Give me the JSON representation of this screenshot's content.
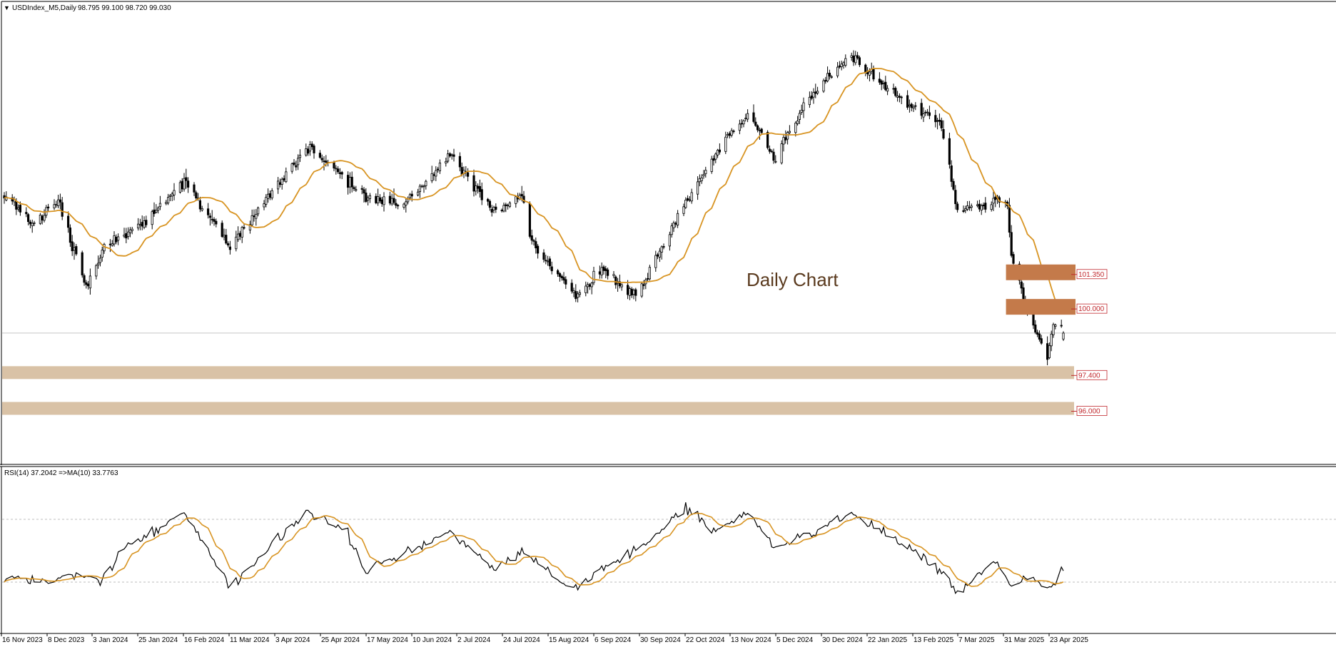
{
  "main_panel": {
    "symbol_label": "USDIndex_M5,Daily",
    "ohlc_label": "98.795 99.100 98.720 99.030",
    "annotation": "Daily Chart",
    "zone_price_labels": [
      "101.350",
      "100.000",
      "97.400",
      "96.000"
    ]
  },
  "rsi_panel": {
    "label": "RSI(14) 37.2042  =>MA(10) 33.7763"
  },
  "colors": {
    "candle": "#000000",
    "moving_average": "#d89422",
    "resistance_zone": "#c47a4a",
    "support_zone": "#d9c2a6",
    "zone_label": "#c0282d",
    "grid_dash": "#bdbdbd"
  },
  "chart_data": [
    {
      "type": "candlestick",
      "timeframe": "Daily",
      "x_axis_ticks": [
        "16 Nov 2023",
        "8 Dec 2023",
        "3 Jan 2024",
        "25 Jan 2024",
        "16 Feb 2024",
        "11 Mar 2024",
        "3 Apr 2024",
        "25 Apr 2024",
        "17 May 2024",
        "10 Jun 2024",
        "2 Jul 2024",
        "24 Jul 2024",
        "15 Aug 2024",
        "6 Sep 2024",
        "30 Sep 2024",
        "22 Oct 2024",
        "13 Nov 2024",
        "5 Dec 2024",
        "30 Dec 2024",
        "22 Jan 2025",
        "13 Feb 2025",
        "7 Mar 2025",
        "31 Mar 2025",
        "23 Apr 2025"
      ],
      "close_keypoints": [
        {
          "date": "2023-11-16",
          "close": 104.4
        },
        {
          "date": "2023-12-01",
          "close": 103.3
        },
        {
          "date": "2023-12-13",
          "close": 104.2
        },
        {
          "date": "2023-12-27",
          "close": 100.8
        },
        {
          "date": "2024-01-05",
          "close": 102.4
        },
        {
          "date": "2024-01-25",
          "close": 103.3
        },
        {
          "date": "2024-02-14",
          "close": 104.9
        },
        {
          "date": "2024-03-08",
          "close": 102.4
        },
        {
          "date": "2024-04-01",
          "close": 104.8
        },
        {
          "date": "2024-04-16",
          "close": 106.3
        },
        {
          "date": "2024-05-15",
          "close": 104.3
        },
        {
          "date": "2024-06-03",
          "close": 104.0
        },
        {
          "date": "2024-06-26",
          "close": 106.1
        },
        {
          "date": "2024-07-17",
          "close": 103.8
        },
        {
          "date": "2024-08-01",
          "close": 104.4
        },
        {
          "date": "2024-08-05",
          "close": 102.7
        },
        {
          "date": "2024-08-27",
          "close": 100.6
        },
        {
          "date": "2024-09-11",
          "close": 101.5
        },
        {
          "date": "2024-09-27",
          "close": 100.4
        },
        {
          "date": "2024-10-22",
          "close": 104.2
        },
        {
          "date": "2024-11-13",
          "close": 106.8
        },
        {
          "date": "2024-11-22",
          "close": 107.6
        },
        {
          "date": "2024-12-06",
          "close": 105.9
        },
        {
          "date": "2024-12-20",
          "close": 108.0
        },
        {
          "date": "2025-01-13",
          "close": 109.9
        },
        {
          "date": "2025-02-03",
          "close": 108.4
        },
        {
          "date": "2025-02-27",
          "close": 107.2
        },
        {
          "date": "2025-03-07",
          "close": 103.8
        },
        {
          "date": "2025-03-27",
          "close": 104.2
        },
        {
          "date": "2025-04-01",
          "close": 104.0
        },
        {
          "date": "2025-04-03",
          "close": 102.0
        },
        {
          "date": "2025-04-11",
          "close": 99.9
        },
        {
          "date": "2025-04-21",
          "close": 98.0
        },
        {
          "date": "2025-04-24",
          "close": 99.4
        },
        {
          "date": "2025-04-29",
          "close": 99.03
        }
      ],
      "last_bar_ohlc": {
        "open": 98.795,
        "high": 99.1,
        "low": 98.72,
        "close": 99.03
      },
      "moving_average": {
        "description": "lagging average of close",
        "color": "#d89422"
      },
      "price_zones": [
        {
          "label": "101.350",
          "level": 101.35,
          "type": "resistance",
          "extent": "recent bars only"
        },
        {
          "label": "100.000",
          "level": 100.0,
          "type": "resistance",
          "extent": "recent bars only"
        },
        {
          "label": "97.400",
          "level": 97.4,
          "type": "support",
          "extent": "full width"
        },
        {
          "label": "96.000",
          "level": 96.0,
          "type": "support",
          "extent": "full width"
        }
      ],
      "horizontal_line": {
        "level": 99.03
      },
      "y_range": [
        94.2,
        111.5
      ],
      "grid": false
    },
    {
      "type": "line",
      "name": "RSI(14)",
      "last_value": 37.2042,
      "ma_name": "MA(10)",
      "ma_last_value": 33.7763,
      "levels": [
        70,
        30
      ],
      "y_range": [
        0,
        100
      ],
      "keypoints": [
        {
          "date": "2023-11-16",
          "rsi": 33
        },
        {
          "date": "2023-12-06",
          "rsi": 30
        },
        {
          "date": "2023-12-18",
          "rsi": 34
        },
        {
          "date": "2024-01-03",
          "rsi": 31
        },
        {
          "date": "2024-01-15",
          "rsi": 52
        },
        {
          "date": "2024-02-14",
          "rsi": 74
        },
        {
          "date": "2024-03-08",
          "rsi": 27
        },
        {
          "date": "2024-04-16",
          "rsi": 76
        },
        {
          "date": "2024-05-06",
          "rsi": 60
        },
        {
          "date": "2024-05-15",
          "rsi": 38
        },
        {
          "date": "2024-06-26",
          "rsi": 62
        },
        {
          "date": "2024-07-17",
          "rsi": 38
        },
        {
          "date": "2024-08-01",
          "rsi": 50
        },
        {
          "date": "2024-08-27",
          "rsi": 25
        },
        {
          "date": "2024-09-15",
          "rsi": 42
        },
        {
          "date": "2024-10-01",
          "rsi": 53
        },
        {
          "date": "2024-10-22",
          "rsi": 77
        },
        {
          "date": "2024-11-05",
          "rsi": 63
        },
        {
          "date": "2024-11-22",
          "rsi": 75
        },
        {
          "date": "2024-12-06",
          "rsi": 52
        },
        {
          "date": "2025-01-13",
          "rsi": 74
        },
        {
          "date": "2025-02-03",
          "rsi": 58
        },
        {
          "date": "2025-02-20",
          "rsi": 44
        },
        {
          "date": "2025-03-07",
          "rsi": 24
        },
        {
          "date": "2025-03-27",
          "rsi": 44
        },
        {
          "date": "2025-04-03",
          "rsi": 26
        },
        {
          "date": "2025-04-11",
          "rsi": 33
        },
        {
          "date": "2025-04-21",
          "rsi": 25
        },
        {
          "date": "2025-04-29",
          "rsi": 37.2
        }
      ]
    }
  ]
}
